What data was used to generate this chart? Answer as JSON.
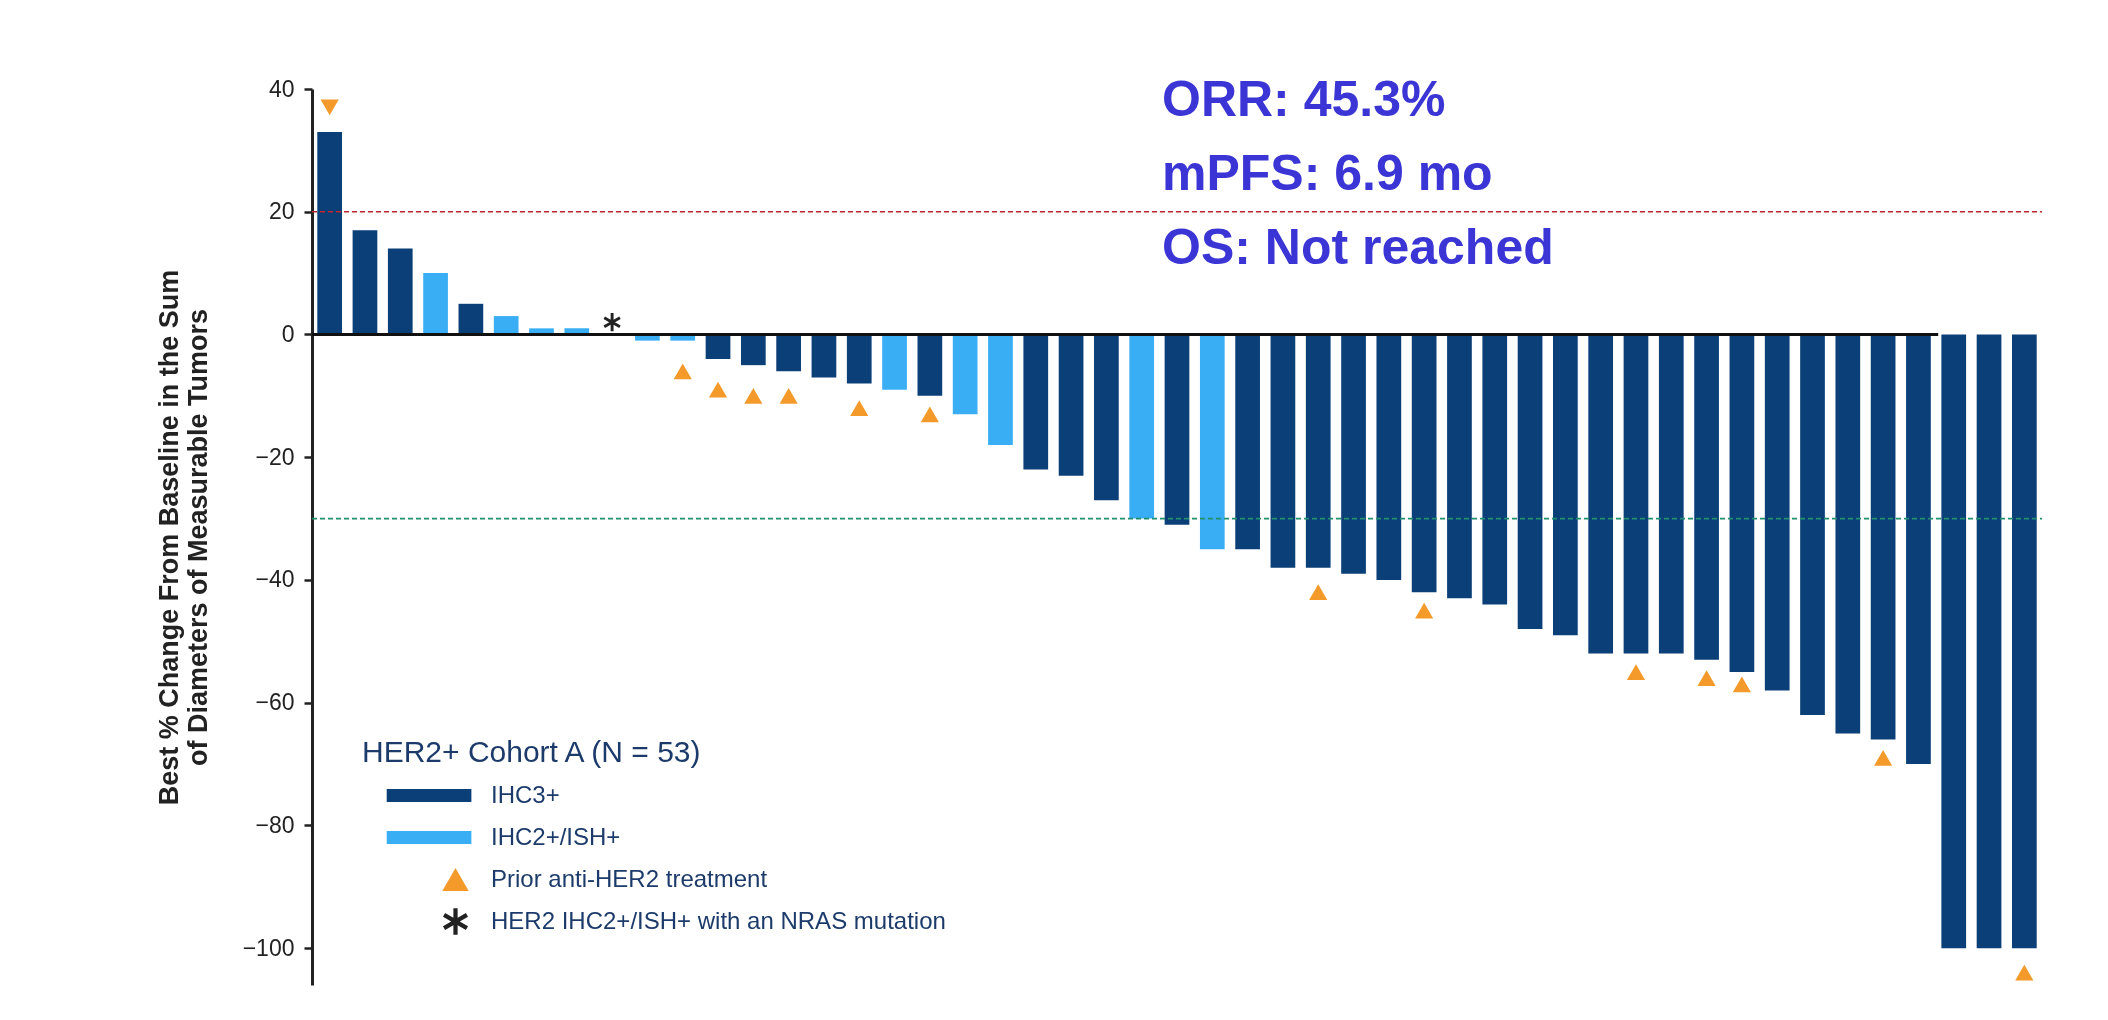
{
  "chart_data": {
    "type": "bar",
    "ylabel": "Best % Change From Baseline in the Sum\nof Diameters of Measurable Tumors",
    "legend_title": "HER2+ Cohort A (N = 53)",
    "categories": [
      null,
      null,
      null,
      null,
      null,
      null,
      null,
      null,
      null,
      null,
      null,
      null,
      null,
      null,
      null,
      null,
      null,
      null,
      null,
      null,
      null,
      null,
      null,
      null,
      null,
      null,
      null,
      null,
      null,
      null,
      null,
      null,
      null,
      null,
      null,
      null,
      null,
      null,
      null,
      null,
      null,
      null,
      null,
      null,
      null,
      null,
      null,
      null,
      null
    ],
    "series": [
      {
        "name": "IHC3+",
        "color": "#0b3f78",
        "values": [
          33,
          17,
          14,
          null,
          5,
          null,
          null,
          null,
          null,
          null,
          null,
          -4,
          -5,
          -6,
          -7,
          -8,
          null,
          -10,
          null,
          null,
          -22,
          -23,
          -27,
          null,
          -31,
          null,
          -35,
          -38,
          -38,
          -39,
          -40,
          -42,
          -43,
          -44,
          -48,
          -49,
          -52,
          -52,
          -52,
          -53,
          -55,
          -58,
          -62,
          -65,
          -66,
          -70,
          -100,
          -100,
          -100
        ]
      },
      {
        "name": "IHC2+/ISH+",
        "color": "#3aaef5",
        "values": [
          null,
          null,
          null,
          10,
          null,
          3,
          1,
          1,
          0,
          -1,
          -1,
          null,
          null,
          null,
          null,
          null,
          -9,
          null,
          -13,
          -18,
          null,
          null,
          null,
          -30,
          null,
          -35,
          null,
          null,
          null,
          null,
          null,
          null,
          null,
          null,
          null,
          null,
          null,
          null,
          null,
          null,
          null,
          null,
          null,
          null,
          null,
          null,
          null,
          null,
          null
        ]
      },
      {
        "name": "Prior anti-HER2 treatment",
        "type": "scatter",
        "marker": "triangle",
        "color": "#f39a2b",
        "values": [
          37,
          null,
          null,
          null,
          null,
          null,
          null,
          null,
          null,
          null,
          -6,
          -9,
          -10,
          -10,
          null,
          -12,
          null,
          -13,
          null,
          null,
          null,
          null,
          null,
          null,
          null,
          null,
          null,
          null,
          -42,
          null,
          null,
          -45,
          null,
          null,
          null,
          null,
          null,
          -55,
          null,
          -56,
          -57,
          null,
          null,
          null,
          -69,
          null,
          null,
          null,
          -104
        ]
      },
      {
        "name": "HER2 IHC2+/ISH+ with an NRAS mutation",
        "type": "scatter",
        "marker": "cross",
        "color": "#222222",
        "values": [
          null,
          null,
          null,
          null,
          null,
          null,
          null,
          null,
          2,
          null,
          null,
          null,
          null,
          null,
          null,
          null,
          null,
          null,
          null,
          null,
          null,
          null,
          null,
          null,
          null,
          null,
          null,
          null,
          null,
          null,
          null,
          null,
          null,
          null,
          null,
          null,
          null,
          null,
          null,
          null,
          null,
          null,
          null,
          null,
          null,
          null,
          null,
          null,
          null
        ]
      }
    ],
    "ylim": [
      -106,
      40
    ],
    "yticks": [
      -100,
      -80,
      -60,
      -40,
      -20,
      0,
      20,
      40
    ],
    "ref_lines": [
      {
        "axis": "y",
        "value": 20,
        "color": "#c0262d",
        "line_style": "dashed"
      },
      {
        "axis": "y",
        "value": -30,
        "color": "#1f8f6e",
        "line_style": "dashed"
      }
    ],
    "annotations": [
      "ORR: 45.3%",
      "mPFS: 6.9 mo",
      "OS: Not reached"
    ],
    "legend": "bottom left",
    "grid": false,
    "tick_labels": "y"
  }
}
